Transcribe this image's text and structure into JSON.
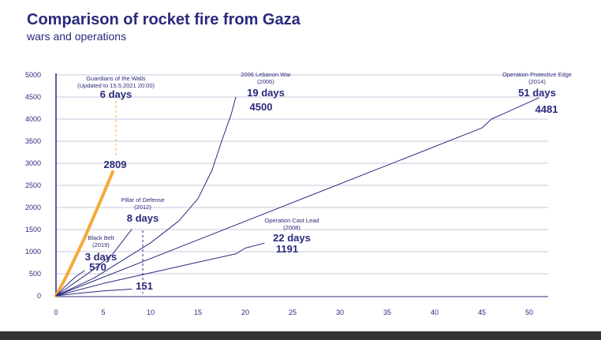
{
  "chart_data": {
    "type": "line",
    "title": "Comparison of rocket fire from Gaza",
    "subtitle": "wars and operations",
    "xlabel": "",
    "ylabel": "",
    "xlim": [
      0,
      51
    ],
    "ylim": [
      0,
      5000
    ],
    "x_ticks": [
      "0",
      "5",
      "10",
      "15",
      "20",
      "25",
      "30",
      "35",
      "40",
      "45",
      "50"
    ],
    "y_ticks": [
      "5000",
      "4500",
      "4000",
      "3500",
      "3000",
      "2500",
      "2000",
      "1500",
      "1000",
      "500",
      "0"
    ],
    "grid": "horizontal",
    "colors": {
      "primary": "#2a2a7e",
      "highlight": "#f5a93a"
    },
    "series": [
      {
        "name": "Guardians of the Walls",
        "label_lines": [
          "Guardians of the Walls",
          "(Updated to 15.5.2021 20:00)"
        ],
        "days_label": "6 days",
        "value_label": "2809",
        "highlight": true,
        "points": [
          [
            0,
            0
          ],
          [
            1,
            400
          ],
          [
            2,
            850
          ],
          [
            3,
            1300
          ],
          [
            4,
            1800
          ],
          [
            5,
            2300
          ],
          [
            6,
            2809
          ]
        ]
      },
      {
        "name": "2006 Lebanon War",
        "label_lines": [
          "2006 Lebanon War",
          "(2006)"
        ],
        "days_label": "19 days",
        "value_label": "4500",
        "points": [
          [
            0,
            0
          ],
          [
            4,
            400
          ],
          [
            7,
            800
          ],
          [
            10,
            1200
          ],
          [
            13,
            1700
          ],
          [
            15,
            2200
          ],
          [
            16.5,
            2850
          ],
          [
            17.5,
            3500
          ],
          [
            18.5,
            4100
          ],
          [
            19,
            4500
          ]
        ]
      },
      {
        "name": "Operation Protective Edge",
        "label_lines": [
          "Operation Protective Edge",
          "(2014)"
        ],
        "days_label": "51 days",
        "value_label": "4481",
        "points": [
          [
            0,
            0
          ],
          [
            45,
            3800
          ],
          [
            46,
            4000
          ],
          [
            51,
            4481
          ]
        ]
      },
      {
        "name": "Pillar of Defense",
        "label_lines": [
          "Pillar of Defense",
          "(2012)"
        ],
        "days_label": "8 days",
        "value_label": "1506",
        "value_shown": false,
        "points": [
          [
            0,
            0
          ],
          [
            2,
            300
          ],
          [
            4,
            600
          ],
          [
            6,
            950
          ],
          [
            8,
            1506
          ]
        ]
      },
      {
        "name": "Operation Cast Lead",
        "label_lines": [
          "Operation Cast Lead",
          "(2008)"
        ],
        "days_label": "22 days",
        "value_label": "1191",
        "points": [
          [
            0,
            0
          ],
          [
            5,
            280
          ],
          [
            10,
            520
          ],
          [
            15,
            760
          ],
          [
            19,
            950
          ],
          [
            20,
            1080
          ],
          [
            22,
            1191
          ]
        ]
      },
      {
        "name": "Black Belt",
        "label_lines": [
          "Black Belt",
          "(2019)"
        ],
        "days_label": "3 days",
        "value_label": "570",
        "points": [
          [
            0,
            0
          ],
          [
            1,
            220
          ],
          [
            2,
            420
          ],
          [
            3,
            570
          ]
        ]
      },
      {
        "name": "Black Belt 151",
        "label_lines": [],
        "days_label": "",
        "value_label": "151",
        "points": [
          [
            0,
            0
          ],
          [
            2,
            50
          ],
          [
            5,
            110
          ],
          [
            8,
            151
          ]
        ]
      }
    ]
  }
}
